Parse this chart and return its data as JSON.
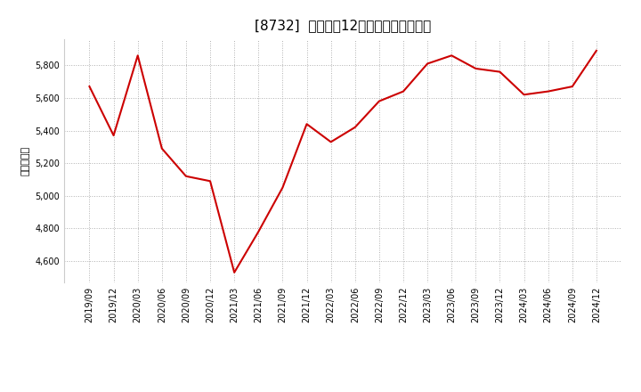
{
  "title": "[8732]  売上高の12か月移動合計の推移",
  "ylabel": "（百万円）",
  "line_color": "#cc0000",
  "background_color": "#ffffff",
  "plot_bg_color": "#ffffff",
  "grid_color": "#b0b0b0",
  "dates": [
    "2019/09",
    "2019/12",
    "2020/03",
    "2020/06",
    "2020/09",
    "2020/12",
    "2021/03",
    "2021/06",
    "2021/09",
    "2021/12",
    "2022/03",
    "2022/06",
    "2022/09",
    "2022/12",
    "2023/03",
    "2023/06",
    "2023/09",
    "2023/12",
    "2024/03",
    "2024/06",
    "2024/09",
    "2024/12"
  ],
  "values": [
    5670,
    5370,
    5860,
    5290,
    5120,
    5090,
    4530,
    4780,
    5050,
    5440,
    5330,
    5420,
    5580,
    5640,
    5810,
    5860,
    5780,
    5760,
    5620,
    5640,
    5670,
    5890
  ],
  "yticks": [
    4600,
    4800,
    5000,
    5200,
    5400,
    5600,
    5800
  ],
  "ylim": [
    4470,
    5960
  ],
  "title_fontsize": 11,
  "tick_fontsize": 7,
  "ylabel_fontsize": 8
}
